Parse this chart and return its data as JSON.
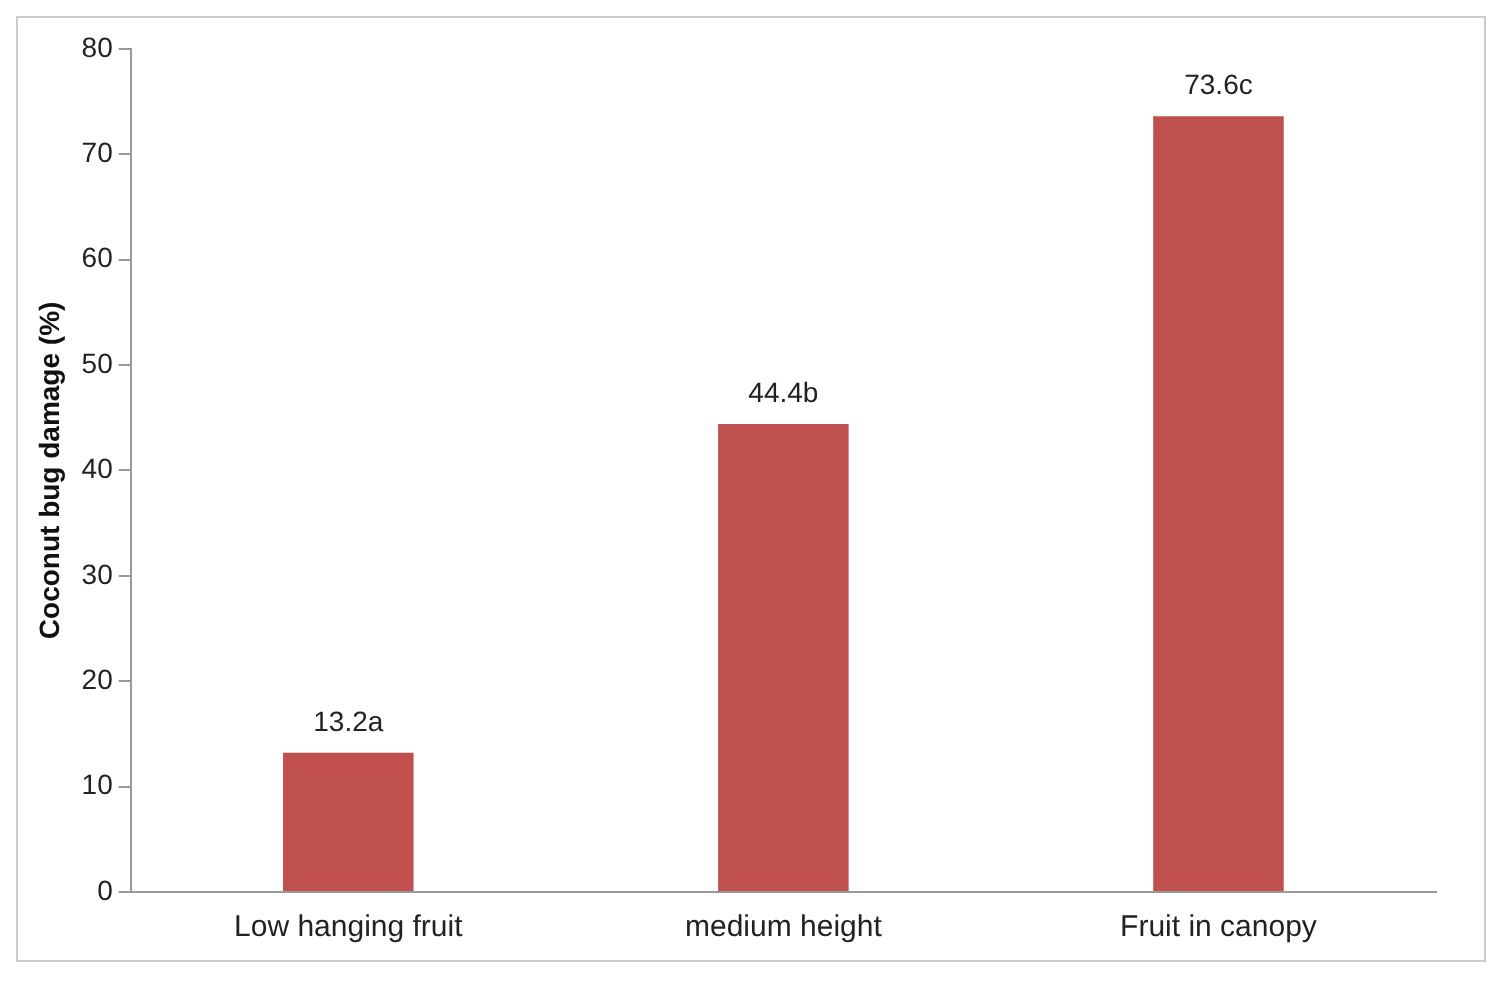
{
  "chart_data": {
    "type": "bar",
    "ylabel": "Coconut bug damage (%)",
    "categories": [
      "Low hanging fruit",
      "medium height",
      "Fruit in canopy"
    ],
    "values": [
      13.2,
      44.4,
      73.6
    ],
    "value_labels": [
      "13.2a",
      "44.4b",
      "73.6c"
    ],
    "color": "#c0504d",
    "ylim": [
      0,
      80
    ],
    "yticks": [
      0,
      10,
      20,
      30,
      40,
      50,
      60,
      70,
      80
    ],
    "grid": false,
    "legend": false
  }
}
